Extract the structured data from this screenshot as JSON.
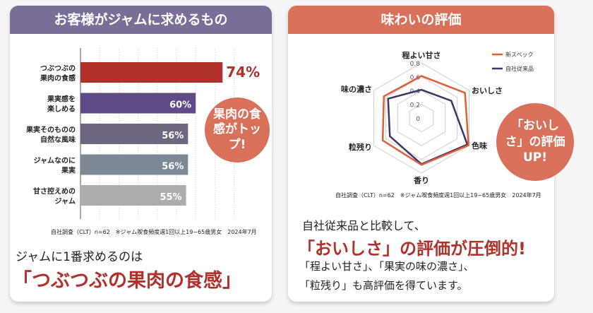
{
  "left": {
    "title": "お客様がジャムに求めるもの",
    "callout": "果肉の食感がトップ!",
    "note": "自社調査（CLT）n=62　※ジャム喫食頻度週1回以上19~65歳男女　2024年7月",
    "summary_line1": "ジャムに1番求めるのは",
    "summary_line2": "「つぶつぶの果肉の食感」"
  },
  "right": {
    "title": "味わいの評価",
    "callout": "「おいしさ」の評価UP!",
    "note": "自社調査（CLT）n=62　※ジャム喫食頻度週1回以上19~65歳男女　2024年7月",
    "summary_line1": "自社従来品と比較して、",
    "summary_line2": "「おいしさ」の評価が圧倒的!",
    "summary_line3": "「程よい甘さ」、「果実の味の濃さ」、",
    "summary_line4": "「粒残り」も高評価を得ています。"
  },
  "chart_data": [
    {
      "type": "bar",
      "orientation": "horizontal",
      "categories": [
        "つぶつぶの\n果肉の食感",
        "果実感を\n楽しめる",
        "果実そのものの\n自然な風味",
        "ジャムなのに\n果実",
        "甘さ控えめの\nジャム"
      ],
      "values": [
        74,
        60,
        56,
        56,
        55
      ],
      "data_labels": [
        "74%",
        "60%",
        "56%",
        "56%",
        "55%"
      ],
      "colors": [
        "#b0302c",
        "#5e4a86",
        "#6e6680",
        "#7c8893",
        "#adadad"
      ],
      "xlim": [
        0,
        100
      ],
      "grid": true
    },
    {
      "type": "radar",
      "axes": [
        "程よい甘さ",
        "おいしさ",
        "色味",
        "香り",
        "粒残り",
        "味の濃さ"
      ],
      "ticks": [
        "0",
        "0.2",
        "0.4",
        "0.6",
        "0.8"
      ],
      "range": [
        0,
        0.8
      ],
      "legend_position": "top-right",
      "series": [
        {
          "name": "新スペック",
          "color": "#e0603a",
          "values": [
            0.61,
            0.73,
            0.79,
            0.68,
            0.65,
            0.63
          ]
        },
        {
          "name": "自社従来品",
          "color": "#3d3566",
          "values": [
            0.41,
            0.5,
            0.77,
            0.67,
            0.53,
            0.56
          ]
        }
      ]
    }
  ]
}
